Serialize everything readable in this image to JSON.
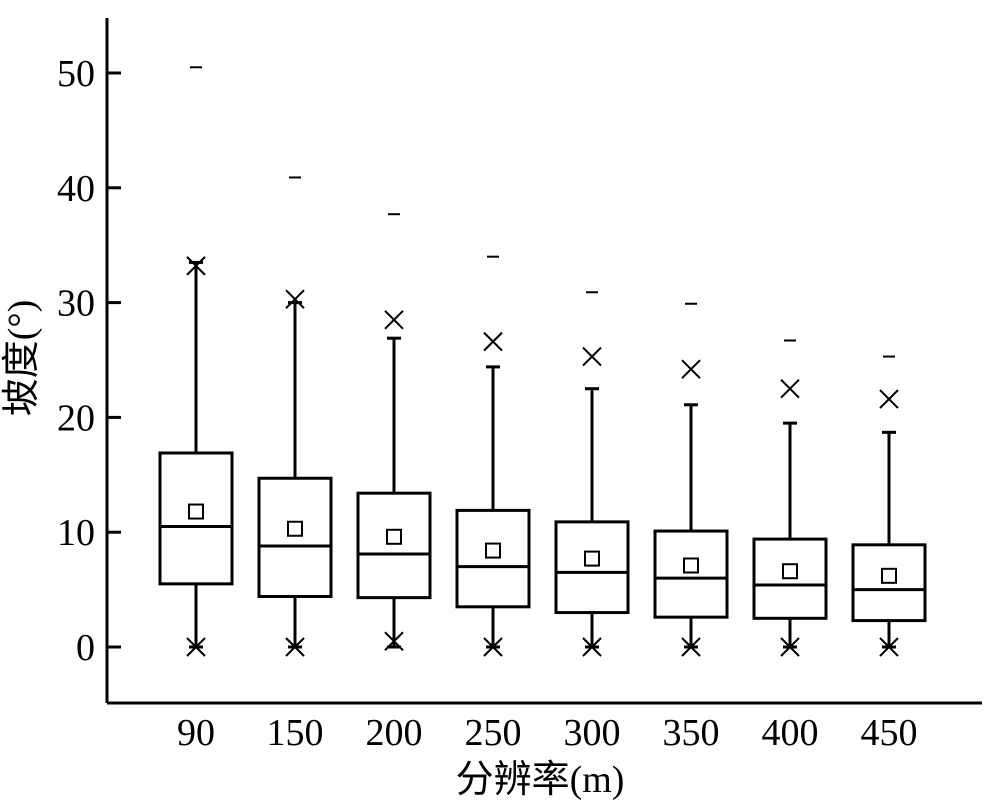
{
  "chart_data": {
    "type": "box",
    "xlabel": "分辨率(m)",
    "ylabel": "坡度(°)",
    "ylim": [
      -5,
      55
    ],
    "yticks": [
      0,
      10,
      20,
      30,
      40,
      50
    ],
    "grid": false,
    "categories": [
      "90",
      "150",
      "200",
      "250",
      "300",
      "350",
      "400",
      "450"
    ],
    "boxes": [
      {
        "min": 0,
        "q1": 5.5,
        "median": 10.5,
        "q3": 16.9,
        "whisker_high": 33.5,
        "mean": 11.8,
        "p1": 0,
        "p99": 33.2,
        "max": 50.5
      },
      {
        "min": 0,
        "q1": 4.4,
        "median": 8.8,
        "q3": 14.7,
        "whisker_high": 30.0,
        "mean": 10.3,
        "p1": 0,
        "p99": 30.3,
        "max": 40.9
      },
      {
        "min": 0,
        "q1": 4.3,
        "median": 8.1,
        "q3": 13.4,
        "whisker_high": 26.9,
        "mean": 9.6,
        "p1": 0.5,
        "p99": 28.5,
        "max": 37.7
      },
      {
        "min": 0,
        "q1": 3.5,
        "median": 7.0,
        "q3": 11.9,
        "whisker_high": 24.4,
        "mean": 8.4,
        "p1": 0,
        "p99": 26.6,
        "max": 34.0
      },
      {
        "min": 0,
        "q1": 3.0,
        "median": 6.5,
        "q3": 10.9,
        "whisker_high": 22.5,
        "mean": 7.7,
        "p1": 0,
        "p99": 25.3,
        "max": 30.9
      },
      {
        "min": 0,
        "q1": 2.6,
        "median": 6.0,
        "q3": 10.1,
        "whisker_high": 21.1,
        "mean": 7.1,
        "p1": 0,
        "p99": 24.2,
        "max": 29.9
      },
      {
        "min": 0,
        "q1": 2.5,
        "median": 5.4,
        "q3": 9.4,
        "whisker_high": 19.5,
        "mean": 6.6,
        "p1": 0,
        "p99": 22.5,
        "max": 26.7
      },
      {
        "min": 0,
        "q1": 2.3,
        "median": 5.0,
        "q3": 8.9,
        "whisker_high": 18.7,
        "mean": 6.2,
        "p1": 0,
        "p99": 21.6,
        "max": 25.3
      }
    ]
  }
}
